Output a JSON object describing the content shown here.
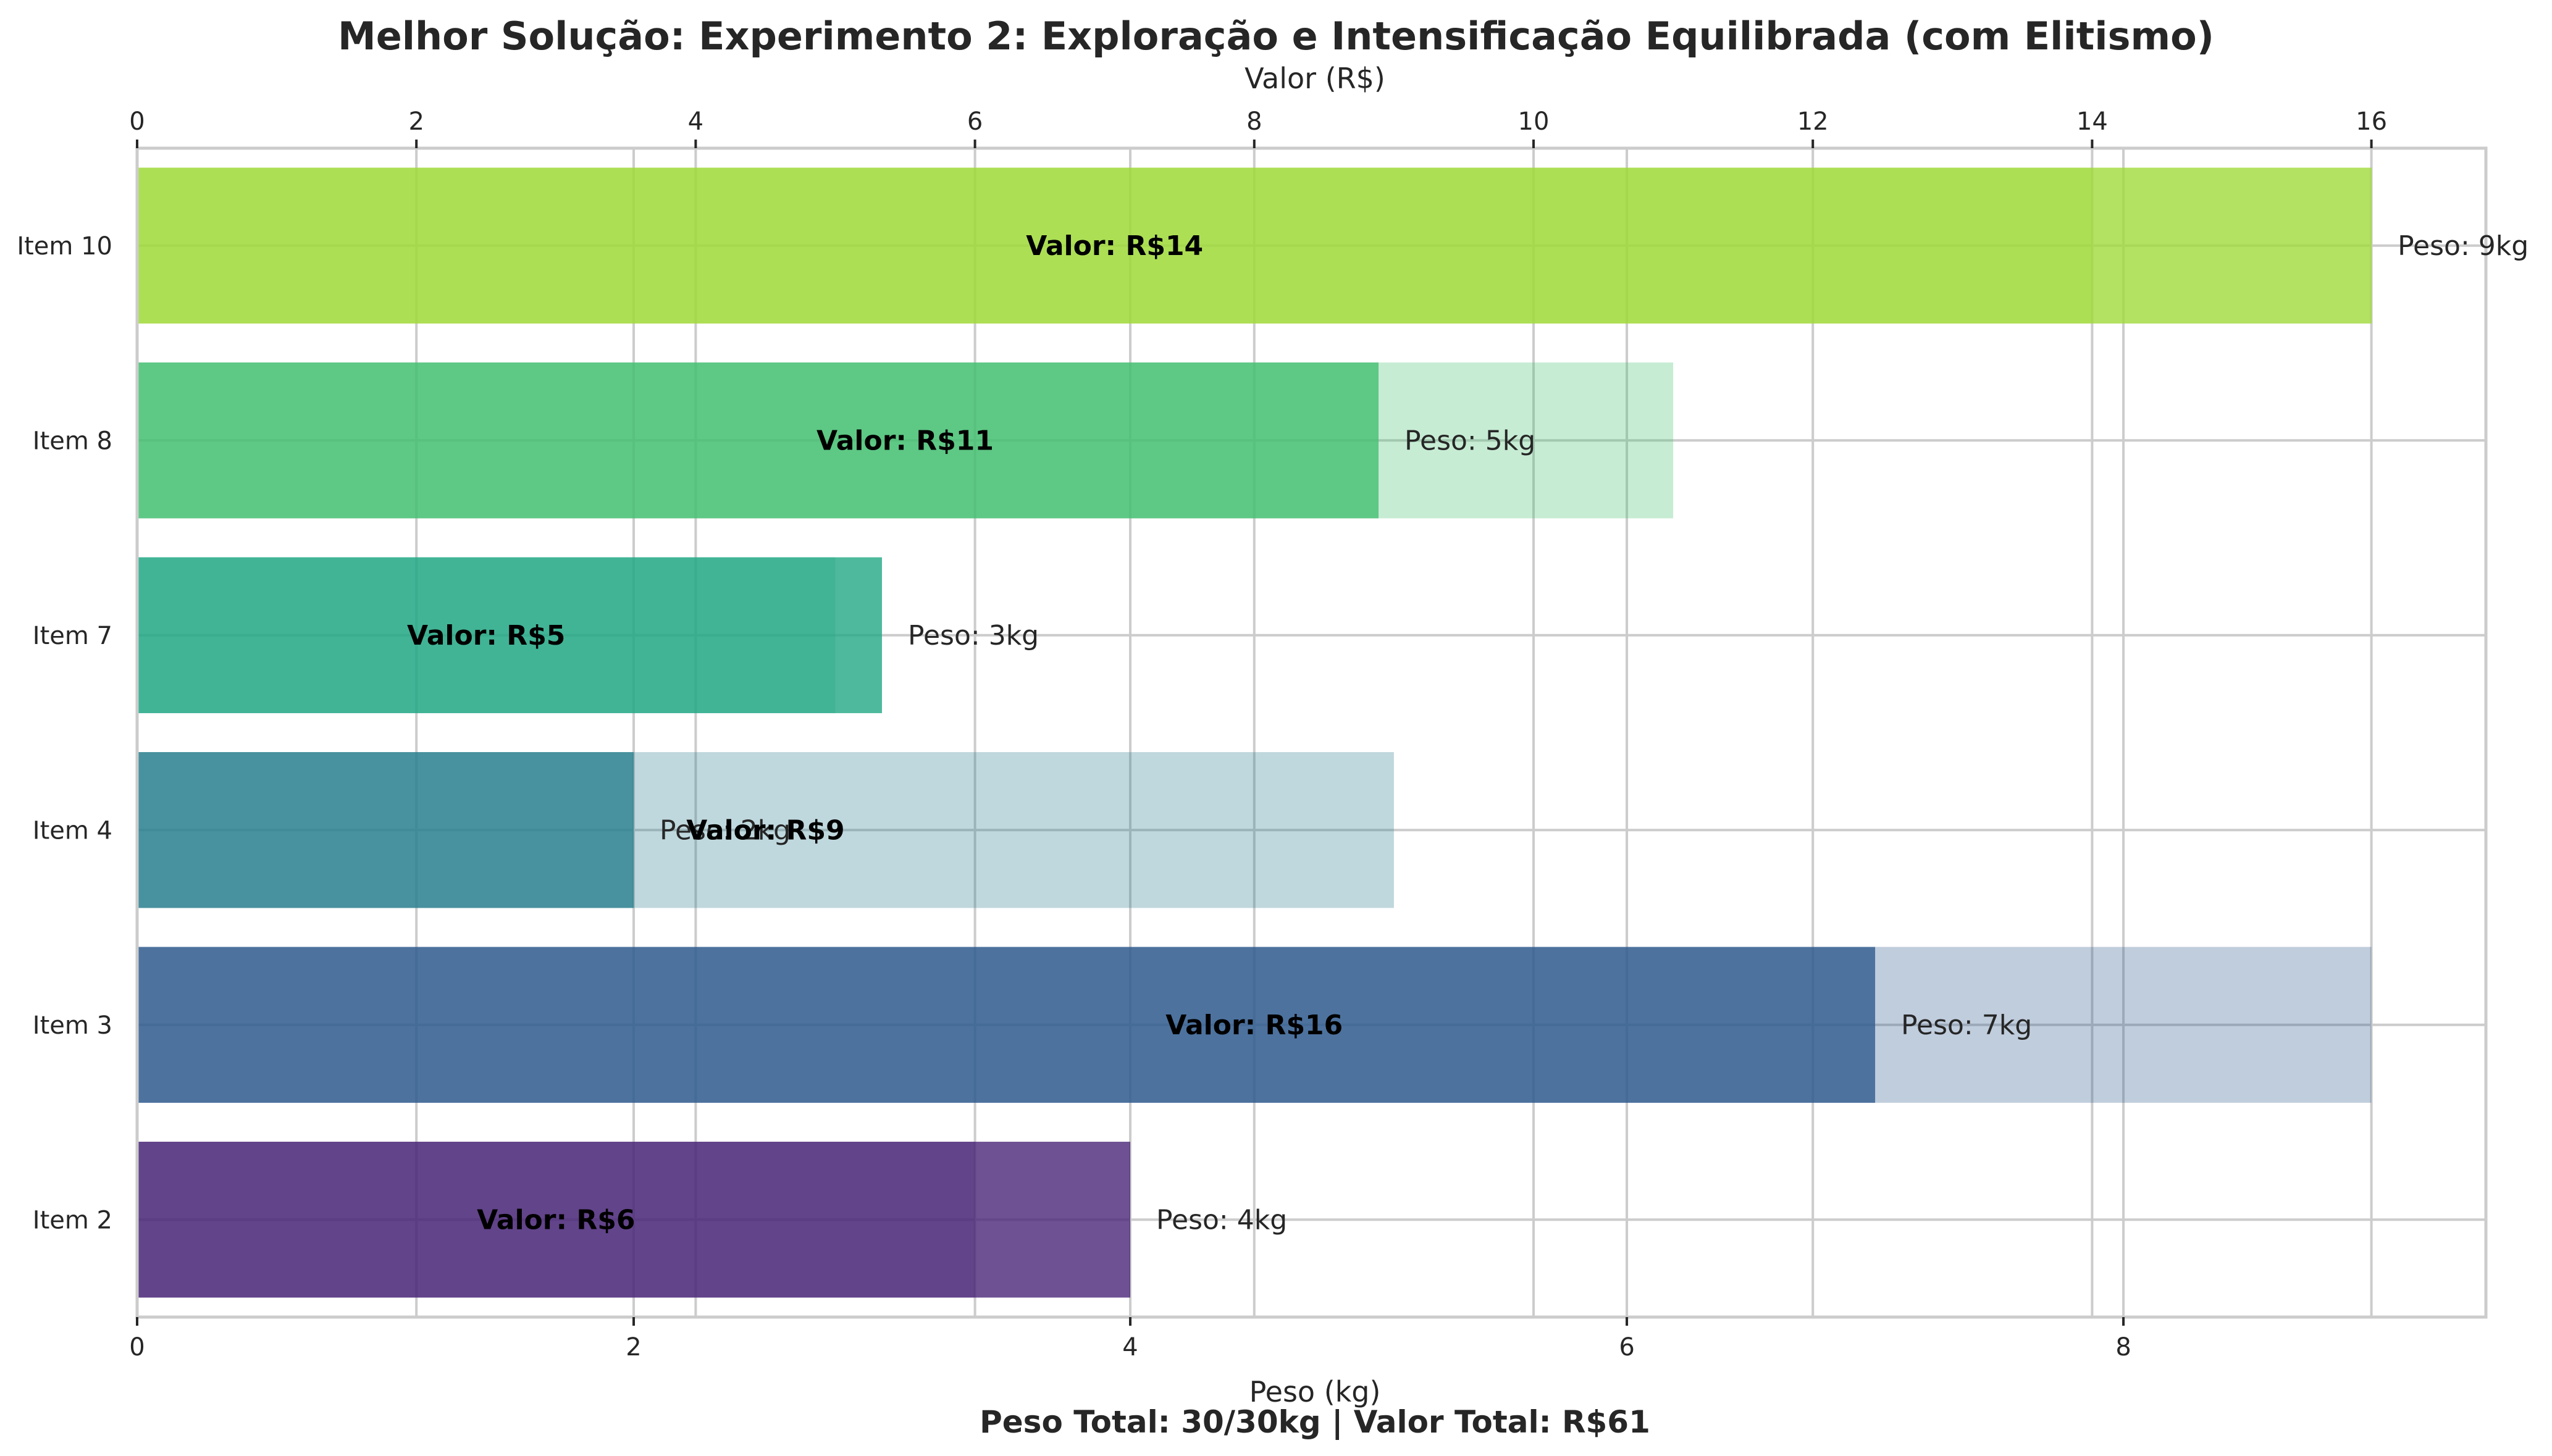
{
  "chart_data": {
    "type": "bar",
    "orientation": "horizontal",
    "title": "Melhor Solução: Experimento 2: Exploração e Intensificação Equilibrada (com Elitismo)",
    "footer": "Peso Total: 30/30kg | Valor Total: R$61",
    "categories": [
      "Item 2",
      "Item 3",
      "Item 4",
      "Item 7",
      "Item 8",
      "Item 10"
    ],
    "series": [
      {
        "name": "Peso (kg)",
        "axis": "bottom",
        "values": [
          4,
          7,
          2,
          3,
          5,
          9
        ],
        "value_labels": [
          "Peso: 4kg",
          "Peso: 7kg",
          "Peso: 2kg",
          "Peso: 3kg",
          "Peso: 5kg",
          "Peso: 9kg"
        ]
      },
      {
        "name": "Valor (R$)",
        "axis": "top",
        "values": [
          6,
          16,
          9,
          5,
          11,
          14
        ],
        "value_labels": [
          "Valor: R$6",
          "Valor: R$16",
          "Valor: R$9",
          "Valor: R$5",
          "Valor: R$11",
          "Valor: R$14"
        ]
      }
    ],
    "colors": [
      "#482677",
      "#2f5b8f",
      "#2a7f8e",
      "#22a884",
      "#44bf70",
      "#a0da39"
    ],
    "x_bottom": {
      "label": "Peso (kg)",
      "range": [
        0,
        9.46
      ],
      "ticks": [
        0,
        2,
        4,
        6,
        8
      ],
      "tick_labels": [
        "0",
        "2",
        "4",
        "6",
        "8"
      ]
    },
    "x_top": {
      "label": "Valor (R$)",
      "range": [
        0,
        16.82
      ],
      "ticks": [
        0,
        2,
        4,
        6,
        8,
        10,
        12,
        14,
        16
      ],
      "tick_labels": [
        "0",
        "2",
        "4",
        "6",
        "8",
        "10",
        "12",
        "14",
        "16"
      ]
    },
    "grid": true,
    "legend": "none"
  }
}
